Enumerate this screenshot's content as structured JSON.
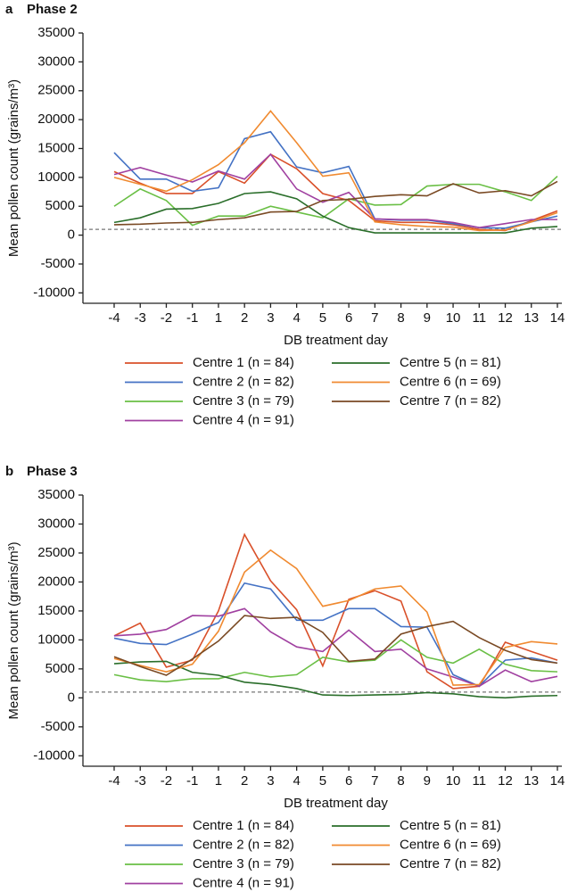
{
  "chart_data": [
    {
      "type": "line",
      "panel_label": "a",
      "title": "Phase 2",
      "x_label": "DB treatment day",
      "y_label": "Mean pollen count (grains/m³)",
      "categories": [
        "-4",
        "-3",
        "-2",
        "-1",
        "1",
        "2",
        "3",
        "4",
        "5",
        "6",
        "7",
        "8",
        "9",
        "10",
        "11",
        "12",
        "13",
        "14"
      ],
      "ylim": [
        -11800,
        35000
      ],
      "yticks": [
        -10000,
        -5000,
        0,
        5000,
        10000,
        15000,
        20000,
        25000,
        30000,
        35000
      ],
      "reference_line": 1000,
      "series": [
        {
          "name": "Centre 1 (n = 84)",
          "color": "#d9502a",
          "values": [
            11000,
            9000,
            7200,
            7200,
            11000,
            9000,
            14000,
            11500,
            7200,
            6000,
            2500,
            2200,
            2200,
            1800,
            1000,
            800,
            2500,
            4200
          ]
        },
        {
          "name": "Centre 2 (n = 82)",
          "color": "#4472c4",
          "values": [
            14300,
            9700,
            9700,
            7600,
            8200,
            16700,
            17900,
            11800,
            10800,
            11900,
            2800,
            2600,
            2600,
            2000,
            1300,
            1200,
            2300,
            3300
          ]
        },
        {
          "name": "Centre 3 (n = 79)",
          "color": "#6abf45",
          "values": [
            5000,
            8000,
            6000,
            1700,
            3300,
            3300,
            5000,
            4000,
            3000,
            6300,
            5200,
            5300,
            8500,
            8800,
            8800,
            7500,
            6000,
            10200
          ]
        },
        {
          "name": "Centre 4 (n = 91)",
          "color": "#a040a0",
          "values": [
            10500,
            11700,
            10400,
            9200,
            11100,
            9700,
            14000,
            8000,
            5700,
            7400,
            2800,
            2700,
            2700,
            2200,
            1300,
            2000,
            2700,
            2700
          ]
        },
        {
          "name": "Centre 5 (n = 81)",
          "color": "#2a6e2a",
          "values": [
            2200,
            3000,
            4500,
            4600,
            5500,
            7200,
            7500,
            6300,
            3300,
            1300,
            400,
            400,
            400,
            400,
            400,
            400,
            1200,
            1500
          ]
        },
        {
          "name": "Centre 6 (n = 69)",
          "color": "#f08a30",
          "values": [
            10000,
            8800,
            7600,
            9600,
            12200,
            16000,
            21500,
            16000,
            10200,
            10800,
            2300,
            1800,
            1500,
            1400,
            800,
            900,
            2300,
            3900
          ]
        },
        {
          "name": "Centre 7 (n = 82)",
          "color": "#7a4a24",
          "values": [
            1800,
            1900,
            2100,
            2200,
            2700,
            3000,
            4000,
            4100,
            6000,
            6200,
            6700,
            7000,
            6800,
            8900,
            7300,
            7700,
            6800,
            9300
          ]
        }
      ]
    },
    {
      "type": "line",
      "panel_label": "b",
      "title": "Phase 3",
      "x_label": "DB treatment day",
      "y_label": "Mean pollen count (grains/m³)",
      "categories": [
        "-4",
        "-3",
        "-2",
        "-1",
        "1",
        "2",
        "3",
        "4",
        "5",
        "6",
        "7",
        "8",
        "9",
        "10",
        "11",
        "12",
        "13",
        "14"
      ],
      "ylim": [
        -11800,
        35000
      ],
      "yticks": [
        -10000,
        -5000,
        0,
        5000,
        10000,
        15000,
        20000,
        25000,
        30000,
        35000
      ],
      "reference_line": 1000,
      "series": [
        {
          "name": "Centre 1 (n = 84)",
          "color": "#d9502a",
          "values": [
            10700,
            12900,
            5300,
            6500,
            15000,
            28200,
            20200,
            15200,
            5500,
            17000,
            18500,
            16700,
            4500,
            1600,
            2000,
            9600,
            8000,
            6500
          ]
        },
        {
          "name": "Centre 2 (n = 82)",
          "color": "#4472c4",
          "values": [
            10300,
            9400,
            9200,
            11000,
            13000,
            19800,
            18800,
            13400,
            13400,
            15400,
            15400,
            12300,
            12200,
            4000,
            2000,
            6500,
            6900,
            6000
          ]
        },
        {
          "name": "Centre 3 (n = 79)",
          "color": "#6abf45",
          "values": [
            4000,
            3100,
            2800,
            3300,
            3300,
            4400,
            3600,
            4000,
            7000,
            6200,
            6500,
            10000,
            7000,
            6000,
            8400,
            5800,
            4700,
            4500
          ]
        },
        {
          "name": "Centre 4 (n = 91)",
          "color": "#a040a0",
          "values": [
            10700,
            11000,
            11800,
            14200,
            14100,
            15400,
            11400,
            8800,
            8000,
            11700,
            8000,
            8400,
            5000,
            3600,
            2000,
            4800,
            2800,
            3700
          ]
        },
        {
          "name": "Centre 5 (n = 81)",
          "color": "#2a6e2a",
          "values": [
            5900,
            6200,
            6300,
            4400,
            3900,
            2700,
            2300,
            1600,
            500,
            400,
            500,
            600,
            900,
            700,
            200,
            0,
            300,
            400
          ]
        },
        {
          "name": "Centre 6 (n = 69)",
          "color": "#f08a30",
          "values": [
            6800,
            5600,
            4500,
            5800,
            11500,
            21700,
            25500,
            22300,
            15800,
            16800,
            18800,
            19300,
            14800,
            2200,
            2300,
            8700,
            9700,
            9300
          ]
        },
        {
          "name": "Centre 7 (n = 82)",
          "color": "#7a4a24",
          "values": [
            7100,
            5400,
            3900,
            6700,
            9800,
            14200,
            13700,
            13900,
            11300,
            6300,
            6700,
            11000,
            12300,
            13200,
            10400,
            8200,
            6600,
            6000
          ]
        }
      ]
    }
  ]
}
